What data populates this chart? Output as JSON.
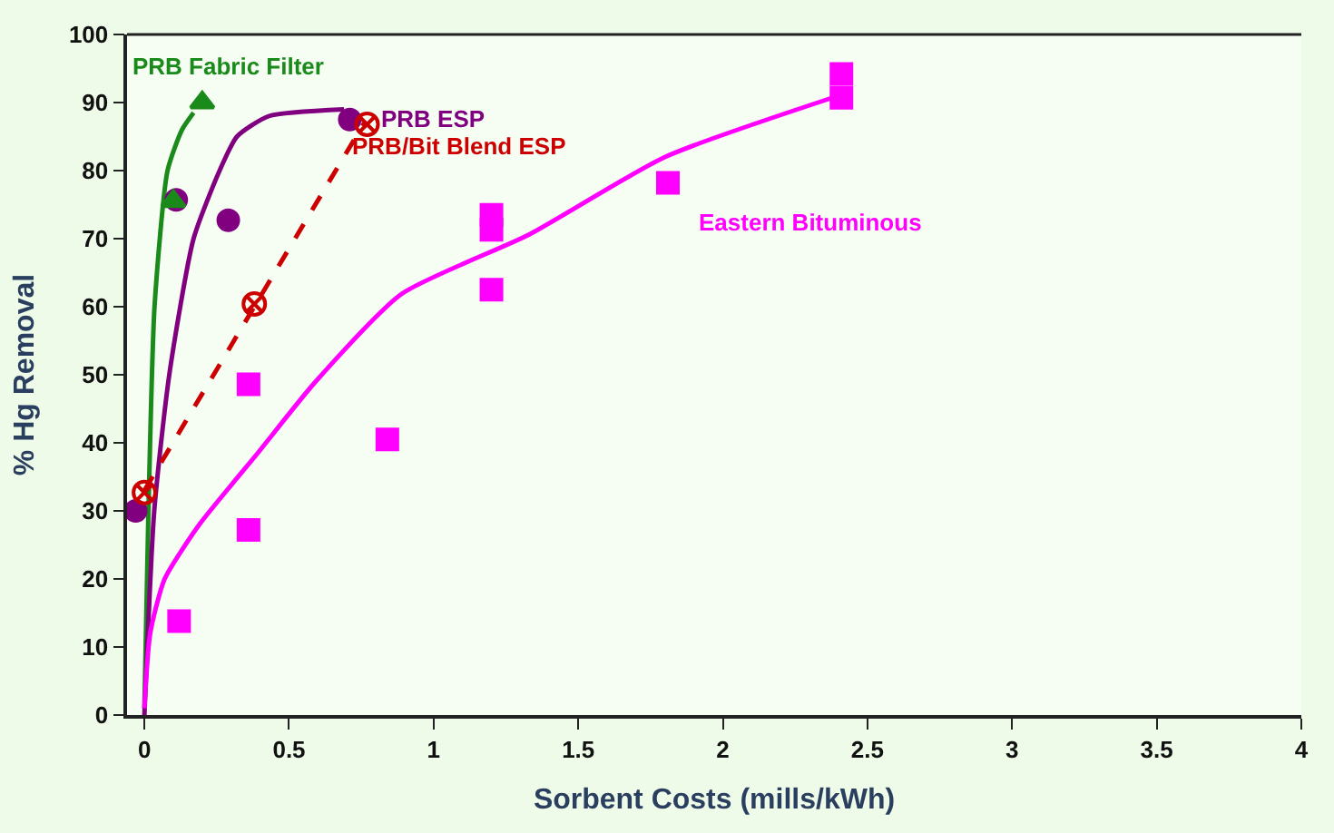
{
  "chart_data": {
    "type": "scatter",
    "xlabel": "Sorbent Costs (mills/kWh)",
    "ylabel": "% Hg Removal",
    "xlim": [
      -0.06,
      4
    ],
    "xticks": [
      0,
      0.5,
      1,
      1.5,
      2,
      2.5,
      3,
      3.5,
      4
    ],
    "ylim": [
      0,
      100
    ],
    "yticks": [
      0,
      10,
      20,
      30,
      40,
      50,
      60,
      70,
      80,
      90,
      100
    ],
    "grid": false,
    "legend": false,
    "series": [
      {
        "type": "line",
        "color": "#1a8a1a",
        "line_style": "solid",
        "marker": "none",
        "x": [
          0,
          0.014,
          0.035,
          0.08,
          0.13,
          0.17
        ],
        "values": [
          1,
          30,
          60,
          80,
          86,
          88.5
        ]
      },
      {
        "type": "line",
        "color": "#800080",
        "line_style": "solid",
        "marker": "none",
        "x": [
          0,
          0.034,
          0.086,
          0.17,
          0.26,
          0.32,
          0.43,
          0.69
        ],
        "values": [
          0,
          30,
          50,
          70,
          80,
          85,
          88,
          89
        ]
      },
      {
        "type": "line",
        "color": "#cc0000",
        "line_style": "dashed",
        "marker": "none",
        "x": [
          0,
          0.76
        ],
        "values": [
          33,
          87
        ]
      },
      {
        "type": "line",
        "color": "#ff00ff",
        "line_style": "solid",
        "marker": "none",
        "x": [
          0,
          0.02,
          0.07,
          0.19,
          0.39,
          0.59,
          0.89,
          1.33,
          1.8,
          2.4
        ],
        "values": [
          1,
          12,
          20,
          28,
          38.4,
          48.9,
          61.9,
          70.6,
          82,
          91
        ]
      },
      {
        "name": "PRB ESP",
        "color": "#800080",
        "marker": "circle",
        "x": [
          -0.03,
          0.11,
          0.29,
          0.71
        ],
        "values": [
          30,
          75.7,
          72.7,
          87.5
        ]
      },
      {
        "name": "PRB Fabric Filter",
        "color": "#1a8a1a",
        "marker": "triangle",
        "x": [
          0.1,
          0.2
        ],
        "values": [
          75.5,
          90
        ]
      },
      {
        "name": "PRB/Bit Blend ESP",
        "color": "#cc0000",
        "marker": "cross",
        "x": [
          0,
          0.38,
          0.77
        ],
        "values": [
          32.7,
          60.4,
          86.8
        ]
      },
      {
        "name": "Eastern Bituminous",
        "color": "#ff00ff",
        "marker": "square",
        "x": [
          0.12,
          0.36,
          0.36,
          0.84,
          1.2,
          1.2,
          1.2,
          1.81,
          2.41,
          2.41
        ],
        "values": [
          13.8,
          27.2,
          48.6,
          40.5,
          62.5,
          71.3,
          73.5,
          78.2,
          94.2,
          90.7
        ]
      }
    ]
  }
}
